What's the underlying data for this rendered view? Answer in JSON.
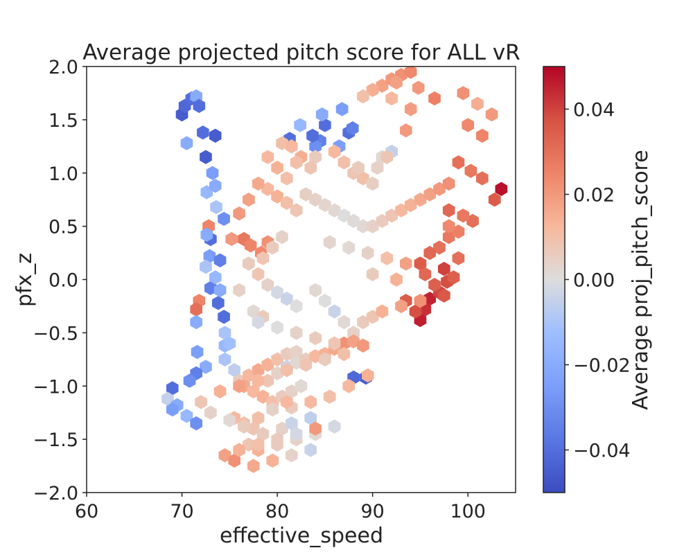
{
  "chart_data": {
    "type": "heatmap",
    "subtype": "hexbin",
    "title": "Average projected pitch score for ALL vR",
    "xlabel": "effective_speed",
    "ylabel": "pfx_z",
    "xlim": [
      60,
      105
    ],
    "ylim": [
      -2.0,
      2.0
    ],
    "xticks": [
      "60",
      "70",
      "80",
      "90",
      "100"
    ],
    "yticks": [
      "−2.0",
      "−1.5",
      "−1.0",
      "−0.5",
      "0.0",
      "0.5",
      "1.0",
      "1.5",
      "2.0"
    ],
    "colorbar": {
      "label": "Average proj_pitch_score",
      "colormap": "coolwarm",
      "range": [
        -0.05,
        0.05
      ],
      "ticks": [
        "−0.04",
        "−0.02",
        "0.00",
        "0.02",
        "0.04"
      ],
      "low_color": "#3b4cc0",
      "mid_color": "#dddddd",
      "high_color": "#b40426"
    },
    "bins": {
      "x": [
        70,
        70.3,
        71,
        71.5,
        71.8,
        72.2,
        72.5,
        73.2,
        73.5,
        70.5,
        72.6,
        73.6,
        74.4,
        73,
        72.9,
        74,
        72.5,
        73,
        73.8,
        74.4,
        74.5,
        71.6,
        72.5,
        71.5,
        70.8,
        69,
        68.5,
        70.5,
        71.5,
        74.5,
        69.5,
        69,
        73.5,
        74,
        73.5,
        72.8,
        72.6,
        71.8,
        71.5,
        71.5,
        88,
        89.3,
        87.5,
        87.9,
        86.5,
        85,
        84.5,
        84,
        83.7,
        81.3,
        82.4,
        84.7,
        86.8,
        103.5,
        102.8,
        101.5,
        100.3,
        99,
        98,
        97.5,
        96,
        95.5,
        95,
        97,
        97.8,
        98.5,
        76.5,
        77.2,
        78.3,
        75.2,
        79,
        91,
        92,
        93,
        90,
        89,
        94,
        92.5,
        94.8,
        96.5,
        101,
        99.5,
        102.5,
        100,
        101.5,
        94,
        92,
        93.5,
        97,
        96,
        95,
        98,
        99,
        100.5,
        99.5,
        98,
        99,
        97.5,
        96.5,
        95.5,
        93.5,
        94.5,
        86,
        87,
        88,
        89,
        90,
        91,
        92,
        88.5,
        90.5,
        91.5,
        80.5,
        81.5,
        82.5,
        83.5,
        82,
        84,
        79,
        80,
        81,
        83,
        84,
        85,
        86,
        87,
        88,
        89,
        90,
        91,
        92,
        93,
        94,
        95,
        96,
        97,
        98,
        85.5,
        87.5,
        89.5,
        91.5,
        93.5,
        90,
        92.5,
        79,
        80,
        81,
        82,
        78,
        77,
        76,
        80.5,
        79.5,
        78.5,
        84,
        85,
        86,
        87,
        88,
        89,
        90,
        91,
        93,
        95,
        77,
        78,
        79,
        80,
        81,
        82,
        76,
        77.5,
        78.5,
        75,
        74.5,
        75.5,
        76,
        77,
        78,
        79,
        80,
        81,
        82,
        76.5,
        77.5,
        78.5,
        79.5,
        80.5,
        81.5,
        82.5,
        79,
        80,
        81,
        82,
        83,
        84,
        85,
        86,
        87,
        88,
        89,
        75.5,
        76.5,
        77.5,
        78.5,
        80.5,
        81.5,
        83.5,
        77,
        78,
        80,
        82,
        84,
        86,
        81.5,
        83.5,
        85.5,
        87.5,
        89.5,
        74,
        76,
        78,
        81,
        83,
        85,
        87,
        72,
        73,
        75,
        76.5,
        78,
        79.5,
        81,
        74.5,
        75.5,
        77.5,
        79.5,
        81.5,
        83.5,
        76,
        78,
        80,
        82,
        84,
        78,
        80,
        82,
        84,
        86
      ],
      "y": [
        1.55,
        1.63,
        1.7,
        1.72,
        1.63,
        1.38,
        1.15,
        1.0,
        1.35,
        1.28,
        0.82,
        0.68,
        0.57,
        0.38,
        0.22,
        0.18,
        0.12,
        -0.08,
        -0.22,
        -0.35,
        -0.62,
        -0.68,
        -0.82,
        -0.88,
        -0.95,
        -1.02,
        -1.12,
        -1.28,
        -1.35,
        -0.5,
        -1.18,
        -1.22,
        0.02,
        -0.1,
        0.88,
        0.5,
        0.42,
        -0.2,
        -0.28,
        -0.4,
        -0.92,
        -0.92,
        1.38,
        1.42,
        1.25,
        1.45,
        1.3,
        1.25,
        1.35,
        1.32,
        1.45,
        1.55,
        1.6,
        0.85,
        0.75,
        0.95,
        1.02,
        1.1,
        0.65,
        0.1,
        -0.18,
        -0.28,
        -0.38,
        -0.12,
        -0.02,
        0.02,
        0.38,
        0.32,
        0.25,
        0.38,
        0.35,
        1.82,
        1.88,
        1.92,
        1.78,
        1.72,
        1.95,
        1.85,
        1.8,
        1.7,
        1.65,
        1.75,
        1.55,
        1.45,
        1.35,
        1.6,
        1.7,
        1.4,
        0.3,
        0.25,
        0.15,
        0.4,
        0.45,
        0.55,
        0.6,
        0.5,
        0.2,
        -0.15,
        -0.05,
        0.05,
        -0.2,
        -0.3,
        1.2,
        1.1,
        1.0,
        0.95,
        0.9,
        1.15,
        1.2,
        1.05,
        1.05,
        1.15,
        1.28,
        1.25,
        1.15,
        1.05,
        1.1,
        1.15,
        1.15,
        1.05,
        0.95,
        0.8,
        0.75,
        0.7,
        0.65,
        0.6,
        0.55,
        0.5,
        0.5,
        0.55,
        0.6,
        0.65,
        0.7,
        0.75,
        0.8,
        0.85,
        0.9,
        0.35,
        0.3,
        0.25,
        0.2,
        0.15,
        0.05,
        0.0,
        0.85,
        0.78,
        0.72,
        0.65,
        0.9,
        0.75,
        0.62,
        0.4,
        0.3,
        0.2,
        -0.1,
        -0.2,
        -0.3,
        -0.4,
        -0.5,
        -0.4,
        -0.35,
        -0.3,
        -0.25,
        -0.2,
        0.15,
        0.05,
        -0.05,
        -0.12,
        -0.18,
        -0.25,
        -0.1,
        -0.3,
        -0.35,
        -0.6,
        -0.75,
        -0.85,
        -0.95,
        -0.9,
        -0.85,
        -0.8,
        -0.75,
        -0.7,
        -0.68,
        -1.0,
        -1.05,
        -1.1,
        -1.15,
        -1.1,
        -1.05,
        -1.0,
        -0.95,
        -0.88,
        -0.82,
        -0.78,
        -0.75,
        -0.72,
        -0.7,
        -0.65,
        -0.6,
        -0.58,
        -0.62,
        -1.3,
        -1.35,
        -1.4,
        -1.45,
        -1.4,
        -1.35,
        -1.3,
        -1.55,
        -1.6,
        -1.55,
        -1.5,
        -1.45,
        -1.38,
        -1.2,
        -1.15,
        -1.1,
        -1.0,
        -0.9,
        -1.05,
        -1.0,
        -0.95,
        -0.85,
        -0.8,
        -0.75,
        -0.7,
        -1.15,
        -1.25,
        -1.32,
        -1.38,
        -1.3,
        -1.22,
        -1.15,
        -1.65,
        -1.7,
        -1.75,
        -1.7,
        -1.65,
        -1.6,
        -1.6,
        -1.55,
        -1.5,
        -1.45,
        -1.4,
        -0.4,
        -0.45,
        -0.5,
        -0.55,
        -0.6
      ],
      "value": [
        -0.045,
        -0.042,
        -0.04,
        -0.02,
        -0.04,
        -0.04,
        -0.045,
        -0.025,
        -0.045,
        -0.02,
        -0.015,
        -0.01,
        -0.03,
        -0.04,
        -0.025,
        -0.035,
        -0.01,
        -0.035,
        -0.04,
        -0.04,
        -0.015,
        -0.025,
        -0.02,
        -0.035,
        -0.03,
        -0.04,
        -0.005,
        -0.015,
        -0.03,
        -0.01,
        -0.02,
        -0.025,
        -0.015,
        -0.02,
        -0.02,
        0.025,
        -0.02,
        0.025,
        0.03,
        -0.02,
        -0.042,
        -0.045,
        -0.04,
        -0.035,
        -0.025,
        -0.04,
        -0.035,
        -0.03,
        -0.04,
        -0.04,
        -0.015,
        -0.02,
        -0.025,
        0.048,
        0.035,
        0.03,
        0.028,
        0.03,
        0.032,
        0.04,
        0.045,
        0.043,
        0.046,
        0.04,
        0.038,
        0.034,
        0.028,
        0.025,
        0.024,
        0.02,
        0.022,
        0.018,
        0.02,
        0.022,
        0.015,
        0.01,
        0.024,
        0.018,
        0.02,
        0.026,
        0.015,
        0.022,
        0.02,
        0.024,
        0.025,
        0.019,
        0.012,
        0.02,
        0.03,
        0.032,
        0.035,
        0.028,
        0.026,
        0.03,
        0.028,
        0.024,
        0.03,
        0.036,
        0.034,
        0.032,
        0.035,
        0.038,
        0.012,
        0.01,
        0.008,
        0.01,
        0.005,
        0.002,
        -0.005,
        0.006,
        0.004,
        0.008,
        0.01,
        0.012,
        0.015,
        0.008,
        0.01,
        0.006,
        0.012,
        0.014,
        0.01,
        0.005,
        0.004,
        0.003,
        0.002,
        0.0,
        0.001,
        0.002,
        0.004,
        0.006,
        0.008,
        0.012,
        0.014,
        0.016,
        0.018,
        0.02,
        0.022,
        0.003,
        0.002,
        0.004,
        0.01,
        0.018,
        0.006,
        0.014,
        0.012,
        0.014,
        0.01,
        0.008,
        0.016,
        0.018,
        0.02,
        0.004,
        0.006,
        0.008,
        0.002,
        0.0,
        -0.004,
        0.002,
        0.004,
        0.006,
        0.008,
        0.014,
        0.018,
        0.022,
        0.006,
        0.008,
        0.004,
        -0.002,
        -0.004,
        0.0,
        0.004,
        0.002,
        0.006,
        -0.012,
        -0.01,
        -0.006,
        0.006,
        0.012,
        0.016,
        0.014,
        0.01,
        0.006,
        0.004,
        0.016,
        0.012,
        0.014,
        0.01,
        0.006,
        0.004,
        0.002,
        0.008,
        0.004,
        -0.004,
        0.002,
        0.006,
        0.012,
        0.014,
        0.016,
        0.022,
        0.018,
        0.02,
        0.012,
        0.01,
        0.008,
        0.006,
        0.004,
        -0.004,
        -0.006,
        0.008,
        0.014,
        0.006,
        0.004,
        0.002,
        -0.002,
        0.006,
        0.012,
        0.01,
        0.012,
        0.014,
        0.014,
        0.018,
        0.012,
        0.01,
        0.008,
        0.006,
        0.01,
        0.008,
        0.004,
        0.002,
        0.006,
        0.01,
        0.004,
        0.012,
        0.018,
        0.022,
        0.016,
        0.014,
        0.004,
        -0.004,
        0.014,
        0.01,
        0.006,
        -0.002,
        0.02,
        -0.002,
        0.0,
        0.004,
        0.006,
        0.008
      ]
    }
  }
}
